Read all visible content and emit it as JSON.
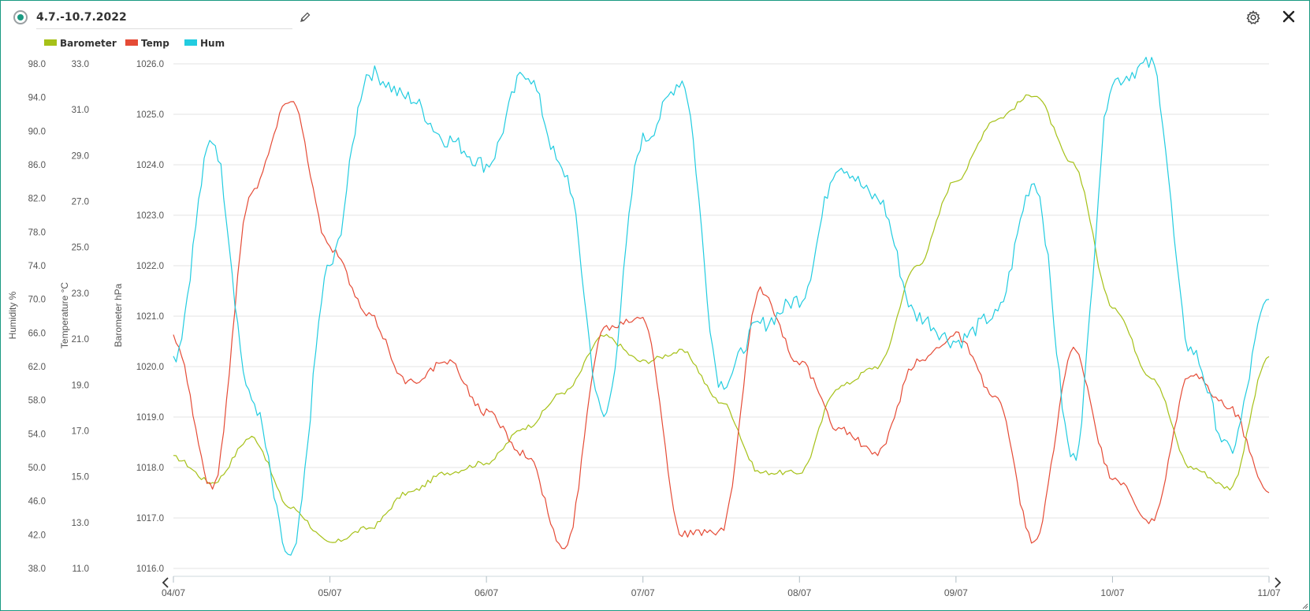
{
  "header": {
    "title": "4.7.-10.7.2022"
  },
  "legend": [
    {
      "name": "Barometer",
      "color": "#a6c118"
    },
    {
      "name": "Temp",
      "color": "#e54b36"
    },
    {
      "name": "Hum",
      "color": "#22cce0"
    }
  ],
  "colors": {
    "accent": "#1a9a82",
    "barometer": "#a6c118",
    "temp": "#e54b36",
    "hum": "#22cce0",
    "grid": "#e3e3e3"
  },
  "icons": {
    "status": "radio-icon",
    "edit": "pencil-icon",
    "settings": "gear-icon",
    "close": "close-icon",
    "prev": "chevron-left-icon",
    "next": "chevron-right-icon"
  },
  "chart_data": {
    "type": "line",
    "grid": true,
    "x_ticks": [
      "04/07",
      "05/07",
      "06/07",
      "07/07",
      "08/07",
      "09/07",
      "10/07",
      "11/07"
    ],
    "xlim": [
      "2022-07-04",
      "2022-07-11"
    ],
    "axes": [
      {
        "id": "hum",
        "label": "Humidity %",
        "ticks": [
          "98.0",
          "94.0",
          "90.0",
          "86.0",
          "82.0",
          "78.0",
          "74.0",
          "70.0",
          "66.0",
          "62.0",
          "58.0",
          "54.0",
          "50.0",
          "46.0",
          "42.0",
          "38.0"
        ],
        "ylim": [
          38,
          98
        ]
      },
      {
        "id": "temp",
        "label": "Temperature °C",
        "ticks": [
          "33.0",
          "31.0",
          "29.0",
          "27.0",
          "25.0",
          "23.0",
          "21.0",
          "19.0",
          "17.0",
          "15.0",
          "13.0",
          "11.0"
        ],
        "ylim": [
          11,
          33
        ]
      },
      {
        "id": "baro",
        "label": "Barometer hPa",
        "ticks": [
          "1026.0",
          "1025.0",
          "1024.0",
          "1023.0",
          "1022.0",
          "1021.0",
          "1020.0",
          "1019.0",
          "1018.0",
          "1017.0",
          "1016.0"
        ],
        "ylim": [
          1016,
          1026
        ]
      }
    ],
    "series": [
      {
        "name": "Barometer",
        "axis": "baro",
        "x": [
          "2022-07-04 00:00",
          "2022-07-04 06:00",
          "2022-07-04 12:00",
          "2022-07-04 18:00",
          "2022-07-05 00:00",
          "2022-07-05 06:00",
          "2022-07-05 12:00",
          "2022-07-05 18:00",
          "2022-07-06 00:00",
          "2022-07-06 06:00",
          "2022-07-06 12:00",
          "2022-07-06 18:00",
          "2022-07-07 00:00",
          "2022-07-07 06:00",
          "2022-07-07 12:00",
          "2022-07-07 18:00",
          "2022-07-08 00:00",
          "2022-07-08 06:00",
          "2022-07-08 12:00",
          "2022-07-08 18:00",
          "2022-07-09 00:00",
          "2022-07-09 06:00",
          "2022-07-09 12:00",
          "2022-07-09 18:00",
          "2022-07-10 00:00",
          "2022-07-10 06:00",
          "2022-07-10 12:00",
          "2022-07-10 18:00",
          "2022-07-11 00:00"
        ],
        "values": [
          1018.2,
          1017.7,
          1018.6,
          1017.2,
          1016.5,
          1016.8,
          1017.5,
          1017.9,
          1018.1,
          1018.8,
          1019.5,
          1020.6,
          1020.1,
          1020.3,
          1019.3,
          1017.9,
          1017.9,
          1019.6,
          1020.0,
          1022.0,
          1023.7,
          1024.9,
          1025.4,
          1024.0,
          1021.2,
          1019.8,
          1018.0,
          1017.6,
          1020.2
        ]
      },
      {
        "name": "Temp",
        "axis": "temp",
        "x": [
          "2022-07-04 00:00",
          "2022-07-04 06:00",
          "2022-07-04 12:00",
          "2022-07-04 18:00",
          "2022-07-05 00:00",
          "2022-07-05 06:00",
          "2022-07-05 12:00",
          "2022-07-05 18:00",
          "2022-07-06 00:00",
          "2022-07-06 06:00",
          "2022-07-06 12:00",
          "2022-07-06 18:00",
          "2022-07-07 00:00",
          "2022-07-07 06:00",
          "2022-07-07 12:00",
          "2022-07-07 18:00",
          "2022-07-08 00:00",
          "2022-07-08 06:00",
          "2022-07-08 12:00",
          "2022-07-08 18:00",
          "2022-07-09 00:00",
          "2022-07-09 06:00",
          "2022-07-09 12:00",
          "2022-07-09 18:00",
          "2022-07-10 00:00",
          "2022-07-10 06:00",
          "2022-07-10 12:00",
          "2022-07-10 18:00",
          "2022-07-11 00:00"
        ],
        "values": [
          21.1,
          14.5,
          27.5,
          31.5,
          25.0,
          22.0,
          19.1,
          20.0,
          17.8,
          16.0,
          11.8,
          21.5,
          22.0,
          12.5,
          12.6,
          23.1,
          20.0,
          17.1,
          16.0,
          20.0,
          21.2,
          18.5,
          12.1,
          20.5,
          15.0,
          13.0,
          19.5,
          18.0,
          14.3
        ]
      },
      {
        "name": "Hum",
        "axis": "hum",
        "x": [
          "2022-07-04 00:00",
          "2022-07-04 06:00",
          "2022-07-04 12:00",
          "2022-07-04 18:00",
          "2022-07-05 00:00",
          "2022-07-05 06:00",
          "2022-07-05 12:00",
          "2022-07-05 18:00",
          "2022-07-06 00:00",
          "2022-07-06 06:00",
          "2022-07-06 12:00",
          "2022-07-06 18:00",
          "2022-07-07 00:00",
          "2022-07-07 06:00",
          "2022-07-07 12:00",
          "2022-07-07 18:00",
          "2022-07-08 00:00",
          "2022-07-08 06:00",
          "2022-07-08 12:00",
          "2022-07-08 18:00",
          "2022-07-09 00:00",
          "2022-07-09 06:00",
          "2022-07-09 12:00",
          "2022-07-09 18:00",
          "2022-07-10 00:00",
          "2022-07-10 06:00",
          "2022-07-10 12:00",
          "2022-07-10 18:00",
          "2022-07-11 00:00"
        ],
        "values": [
          63.0,
          89.0,
          58.0,
          39.0,
          74.0,
          97.0,
          94.0,
          89.0,
          86.0,
          97.0,
          85.0,
          56.0,
          89.0,
          96.0,
          60.0,
          67.0,
          70.0,
          86.0,
          82.0,
          68.0,
          65.0,
          68.0,
          84.0,
          51.0,
          96.0,
          98.0,
          64.0,
          52.0,
          70.0
        ]
      }
    ]
  }
}
